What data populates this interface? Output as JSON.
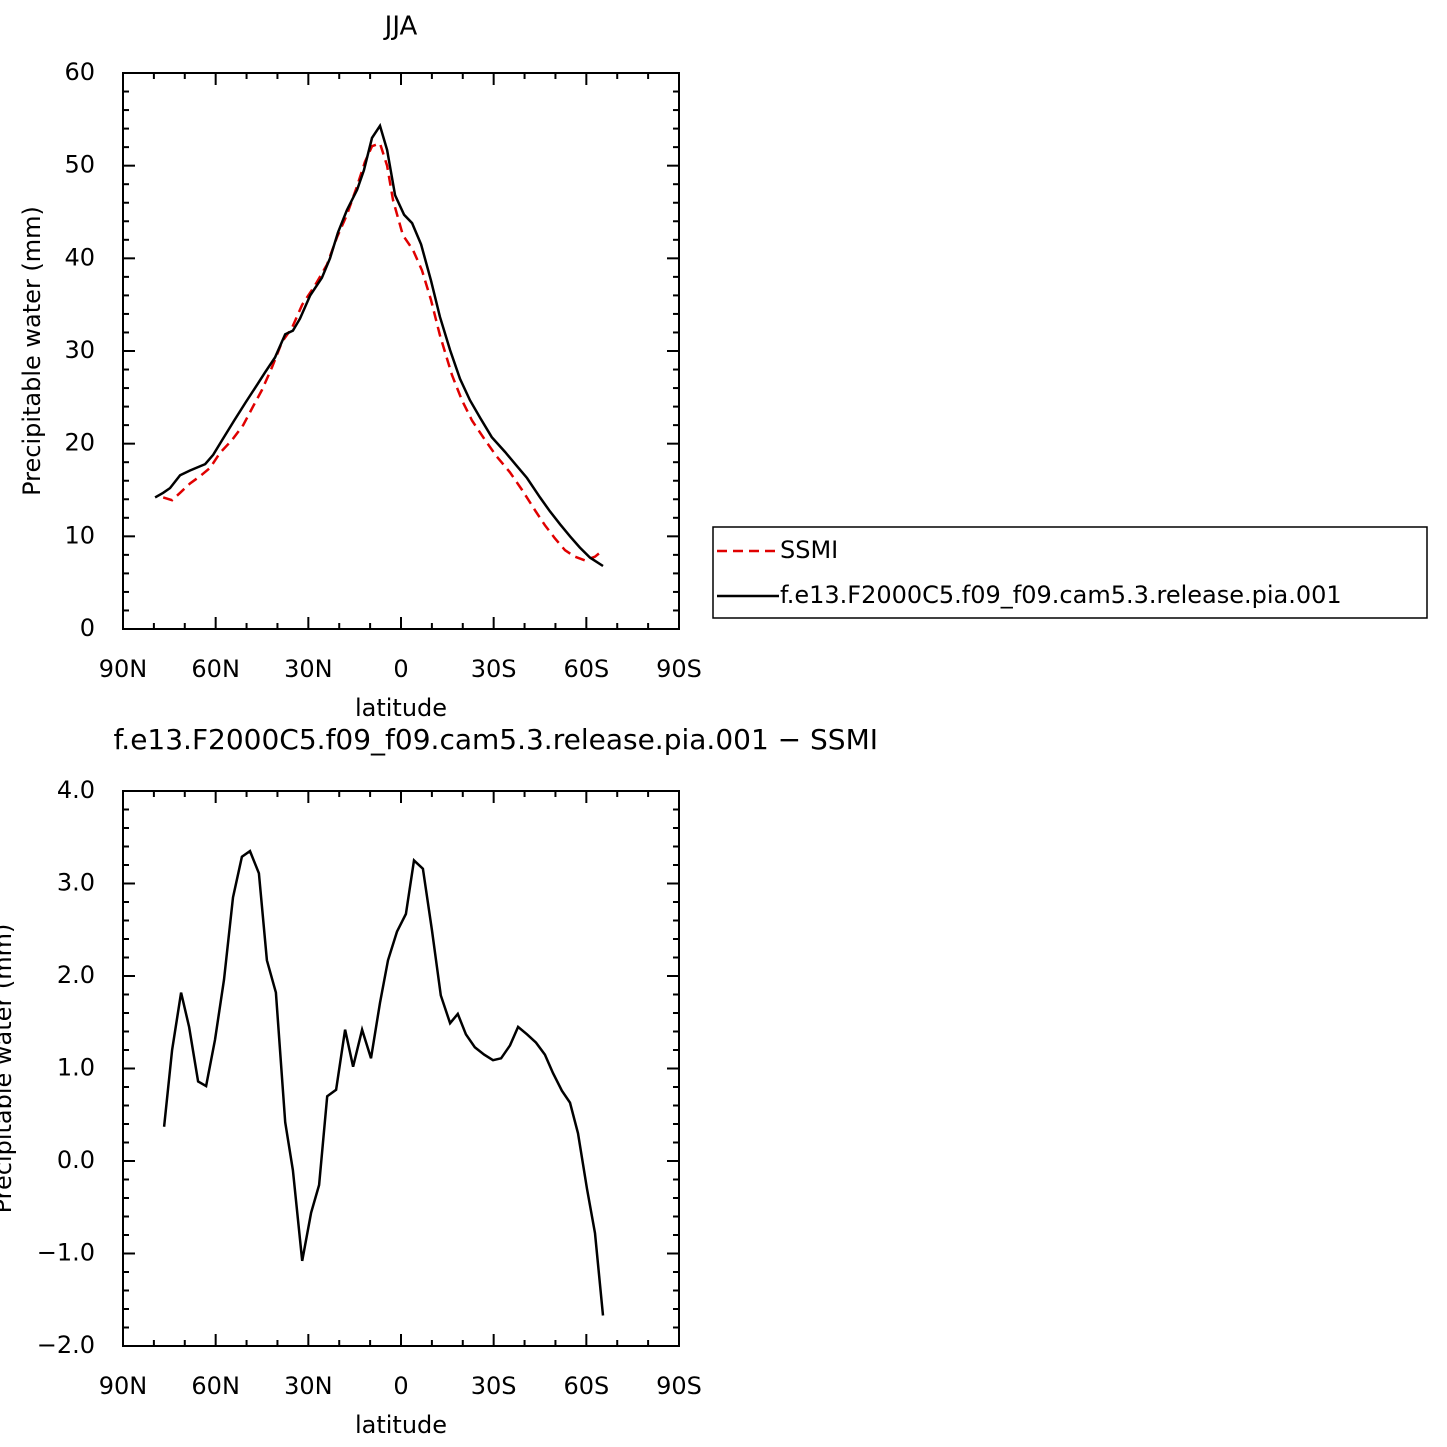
{
  "chart_data": [
    {
      "type": "line",
      "title": "JJA",
      "xlabel": "latitude",
      "ylabel": "Precipitable water (mm)",
      "xlim": [
        90,
        -90
      ],
      "xticks": [
        {
          "value": 90,
          "label": "90N"
        },
        {
          "value": 60,
          "label": "60N"
        },
        {
          "value": 30,
          "label": "30N"
        },
        0,
        {
          "value": -30,
          "label": "30S"
        },
        {
          "value": -60,
          "label": "60S"
        },
        {
          "value": -90,
          "label": "90S"
        }
      ],
      "minor_xticks": [
        80,
        70,
        50,
        40,
        20,
        10,
        -10,
        -20,
        -40,
        -50,
        -70,
        -80
      ],
      "ylim": [
        0,
        60
      ],
      "yticks": [
        0,
        10,
        20,
        30,
        40,
        50,
        60
      ],
      "minor_yticks": [
        2,
        4,
        6,
        8,
        12,
        14,
        16,
        18,
        22,
        24,
        26,
        28,
        32,
        34,
        36,
        38,
        42,
        44,
        46,
        48,
        52,
        54,
        56,
        58
      ],
      "legend": "right",
      "series": [
        {
          "name": "SSMI",
          "color": "#e00000",
          "line_style": "dashed",
          "x": [
            77.0,
            74.1,
            71.5,
            68.3,
            65.0,
            61.8,
            58.6,
            54.7,
            51.1,
            47.9,
            45.0,
            41.7,
            38.5,
            35.3,
            32.0,
            27.8,
            24.0,
            20.7,
            17.5,
            14.2,
            11.7,
            9.4,
            6.8,
            4.5,
            2.6,
            -0.6,
            -3.9,
            -6.8,
            -9.7,
            -12.6,
            -16.5,
            -19.7,
            -23.0,
            -27.2,
            -31.0,
            -35.3,
            -39.2,
            -43.4,
            -46.6,
            -49.8,
            -53.1,
            -56.3,
            -59.5,
            -62.8,
            -65.4
          ],
          "values": [
            14.2,
            13.9,
            14.7,
            15.7,
            16.5,
            17.4,
            19.0,
            20.4,
            22.0,
            24.0,
            25.8,
            28.3,
            31.0,
            32.5,
            35.0,
            37.1,
            39.3,
            42.3,
            44.7,
            47.8,
            50.4,
            52.1,
            52.4,
            50.0,
            46.3,
            42.5,
            40.9,
            38.7,
            35.5,
            31.7,
            27.4,
            24.7,
            22.5,
            20.4,
            18.6,
            16.9,
            15.0,
            12.8,
            11.2,
            9.8,
            8.5,
            7.8,
            7.4,
            7.8,
            8.5
          ]
        },
        {
          "name": "f.e13.F2000C5.f09_f09.cam5.3.release.pia.001",
          "color": "#000000",
          "line_style": "solid",
          "x": [
            79.6,
            77.0,
            74.8,
            71.5,
            68.3,
            63.4,
            60.8,
            57.9,
            54.0,
            50.2,
            46.3,
            44.0,
            40.8,
            37.5,
            35.0,
            32.7,
            29.4,
            25.6,
            23.0,
            20.4,
            17.5,
            14.2,
            12.0,
            9.4,
            6.8,
            4.5,
            1.9,
            -1.0,
            -3.6,
            -6.5,
            -9.7,
            -12.6,
            -15.9,
            -19.1,
            -22.3,
            -25.6,
            -29.4,
            -33.7,
            -37.5,
            -40.8,
            -45.0,
            -48.2,
            -51.5,
            -54.7,
            -57.9,
            -61.2,
            -65.4
          ],
          "values": [
            14.2,
            14.7,
            15.2,
            16.6,
            17.1,
            17.8,
            18.8,
            20.4,
            22.5,
            24.5,
            26.5,
            27.7,
            29.3,
            31.8,
            32.2,
            33.5,
            36.0,
            37.9,
            40.0,
            42.8,
            45.2,
            47.4,
            49.5,
            53.0,
            54.3,
            51.7,
            46.8,
            44.7,
            43.8,
            41.5,
            37.6,
            33.7,
            30.1,
            27.0,
            24.7,
            22.8,
            20.7,
            19.1,
            17.6,
            16.3,
            14.2,
            12.7,
            11.3,
            10.0,
            8.8,
            7.7,
            6.8
          ]
        }
      ]
    },
    {
      "type": "line",
      "title": "f.e13.F2000C5.f09_f09.cam5.3.release.pia.001 − SSMI",
      "xlabel": "latitude",
      "ylabel": "Precipitable water (mm)",
      "xlim": [
        90,
        -90
      ],
      "xticks": [
        {
          "value": 90,
          "label": "90N"
        },
        {
          "value": 60,
          "label": "60N"
        },
        {
          "value": 30,
          "label": "30N"
        },
        0,
        {
          "value": -30,
          "label": "30S"
        },
        {
          "value": -60,
          "label": "60S"
        },
        {
          "value": -90,
          "label": "90S"
        }
      ],
      "minor_xticks": [
        80,
        70,
        50,
        40,
        20,
        10,
        -10,
        -20,
        -40,
        -50,
        -70,
        -80
      ],
      "ylim": [
        -2,
        4
      ],
      "yticks": [
        {
          "value": -2,
          "label": "−2.0"
        },
        {
          "value": -1,
          "label": "−1.0"
        },
        {
          "value": 0,
          "label": "0.0"
        },
        {
          "value": 1,
          "label": "1.0"
        },
        {
          "value": 2,
          "label": "2.0"
        },
        {
          "value": 3,
          "label": "3.0"
        },
        {
          "value": 4,
          "label": "4.0"
        }
      ],
      "minor_yticks": [
        -1.8,
        -1.6,
        -1.4,
        -1.2,
        -0.8,
        -0.6,
        -0.4,
        -0.2,
        0.2,
        0.4,
        0.6,
        0.8,
        1.2,
        1.4,
        1.6,
        1.8,
        2.2,
        2.4,
        2.6,
        2.8,
        3.2,
        3.4,
        3.6,
        3.8
      ],
      "series": [
        {
          "color": "#000000",
          "line_style": "solid",
          "x": [
            76.7,
            74.1,
            71.2,
            68.6,
            65.7,
            63.1,
            60.2,
            57.3,
            54.4,
            51.5,
            48.9,
            46.0,
            43.4,
            40.5,
            37.5,
            35.0,
            32.0,
            29.1,
            26.5,
            23.9,
            21.0,
            18.1,
            15.5,
            12.6,
            9.7,
            6.8,
            4.2,
            1.3,
            -1.6,
            -4.2,
            -7.1,
            -10.0,
            -12.9,
            -15.9,
            -18.4,
            -21.0,
            -23.9,
            -26.9,
            -29.8,
            -32.4,
            -35.3,
            -37.9,
            -40.8,
            -43.7,
            -46.6,
            -49.2,
            -52.1,
            -54.7,
            -57.3,
            -60.2,
            -62.8,
            -65.4
          ],
          "values": [
            0.37,
            1.2,
            1.82,
            1.45,
            0.86,
            0.81,
            1.31,
            1.96,
            2.85,
            3.29,
            3.35,
            3.11,
            2.17,
            1.82,
            0.42,
            -0.1,
            -1.08,
            -0.56,
            -0.26,
            0.7,
            0.77,
            1.42,
            1.02,
            1.42,
            1.11,
            1.71,
            2.17,
            2.48,
            2.67,
            3.25,
            3.16,
            2.5,
            1.79,
            1.49,
            1.59,
            1.37,
            1.23,
            1.15,
            1.09,
            1.11,
            1.25,
            1.45,
            1.37,
            1.28,
            1.15,
            0.95,
            0.76,
            0.63,
            0.3,
            -0.3,
            -0.78,
            -1.67
          ]
        }
      ]
    }
  ]
}
